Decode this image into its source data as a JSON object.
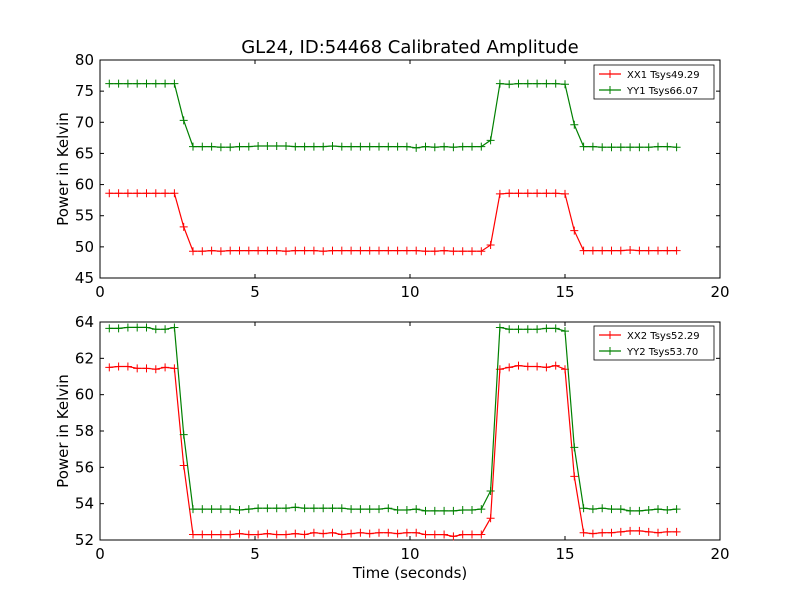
{
  "figure": {
    "title": "GL24, ID:54468 Calibrated Amplitude"
  },
  "chart_data": [
    {
      "type": "line",
      "title": "GL24, ID:54468 Calibrated Amplitude",
      "xlabel": "",
      "ylabel": "Power in Kelvin",
      "xlim": [
        0,
        20
      ],
      "ylim": [
        45,
        80
      ],
      "xticks": [
        0,
        5,
        10,
        15,
        20
      ],
      "yticks": [
        45,
        50,
        55,
        60,
        65,
        70,
        75,
        80
      ],
      "legend_position": "top-right",
      "grid": false,
      "x": [
        0.3,
        0.6,
        0.9,
        1.2,
        1.5,
        1.8,
        2.1,
        2.4,
        2.7,
        3.0,
        3.3,
        3.6,
        3.9,
        4.2,
        4.5,
        4.8,
        5.1,
        5.4,
        5.7,
        6.0,
        6.3,
        6.6,
        6.9,
        7.2,
        7.5,
        7.8,
        8.1,
        8.4,
        8.7,
        9.0,
        9.3,
        9.6,
        9.9,
        10.2,
        10.5,
        10.8,
        11.1,
        11.4,
        11.7,
        12.0,
        12.3,
        12.6,
        12.9,
        13.2,
        13.5,
        13.8,
        14.1,
        14.4,
        14.7,
        15.0,
        15.3,
        15.6,
        15.9,
        16.2,
        16.5,
        16.8,
        17.1,
        17.4,
        17.7,
        18.0,
        18.3,
        18.6
      ],
      "series": [
        {
          "name": "XX1 Tsys49.29",
          "color": "#ff0000",
          "values": [
            58.6,
            58.6,
            58.6,
            58.6,
            58.6,
            58.6,
            58.6,
            58.6,
            53.2,
            49.3,
            49.3,
            49.4,
            49.3,
            49.4,
            49.4,
            49.4,
            49.4,
            49.4,
            49.4,
            49.3,
            49.4,
            49.4,
            49.4,
            49.3,
            49.4,
            49.4,
            49.4,
            49.4,
            49.4,
            49.4,
            49.4,
            49.4,
            49.4,
            49.4,
            49.3,
            49.3,
            49.4,
            49.3,
            49.3,
            49.3,
            49.3,
            50.3,
            58.5,
            58.6,
            58.6,
            58.6,
            58.6,
            58.6,
            58.6,
            58.5,
            52.6,
            49.4,
            49.4,
            49.4,
            49.4,
            49.4,
            49.5,
            49.4,
            49.4,
            49.4,
            49.4,
            49.4
          ]
        },
        {
          "name": "YY1 Tsys66.07",
          "color": "#008000",
          "values": [
            76.2,
            76.2,
            76.2,
            76.2,
            76.2,
            76.2,
            76.2,
            76.2,
            70.3,
            66.1,
            66.1,
            66.1,
            66.0,
            66.0,
            66.1,
            66.1,
            66.2,
            66.2,
            66.2,
            66.2,
            66.1,
            66.1,
            66.1,
            66.1,
            66.2,
            66.1,
            66.1,
            66.1,
            66.1,
            66.1,
            66.1,
            66.1,
            66.1,
            65.9,
            66.1,
            66.0,
            66.1,
            66.0,
            66.1,
            66.1,
            66.1,
            67.1,
            76.2,
            76.1,
            76.2,
            76.2,
            76.2,
            76.2,
            76.2,
            76.1,
            69.6,
            66.1,
            66.1,
            66.0,
            66.0,
            66.0,
            66.0,
            66.0,
            66.0,
            66.1,
            66.1,
            66.0
          ]
        }
      ]
    },
    {
      "type": "line",
      "title": "",
      "xlabel": "Time (seconds)",
      "ylabel": "Power in Kelvin",
      "xlim": [
        0,
        20
      ],
      "ylim": [
        52,
        64
      ],
      "xticks": [
        0,
        5,
        10,
        15,
        20
      ],
      "yticks": [
        52,
        54,
        56,
        58,
        60,
        62,
        64
      ],
      "legend_position": "top-right",
      "grid": false,
      "x": [
        0.3,
        0.6,
        0.9,
        1.2,
        1.5,
        1.8,
        2.1,
        2.4,
        2.7,
        3.0,
        3.3,
        3.6,
        3.9,
        4.2,
        4.5,
        4.8,
        5.1,
        5.4,
        5.7,
        6.0,
        6.3,
        6.6,
        6.9,
        7.2,
        7.5,
        7.8,
        8.1,
        8.4,
        8.7,
        9.0,
        9.3,
        9.6,
        9.9,
        10.2,
        10.5,
        10.8,
        11.1,
        11.4,
        11.7,
        12.0,
        12.3,
        12.6,
        12.9,
        13.2,
        13.5,
        13.8,
        14.1,
        14.4,
        14.7,
        15.0,
        15.3,
        15.6,
        15.9,
        16.2,
        16.5,
        16.8,
        17.1,
        17.4,
        17.7,
        18.0,
        18.3,
        18.6
      ],
      "series": [
        {
          "name": "XX2 Tsys52.29",
          "color": "#ff0000",
          "values": [
            61.5,
            61.55,
            61.55,
            61.45,
            61.45,
            61.4,
            61.5,
            61.45,
            56.1,
            52.3,
            52.3,
            52.3,
            52.3,
            52.3,
            52.35,
            52.3,
            52.3,
            52.35,
            52.3,
            52.3,
            52.35,
            52.3,
            52.4,
            52.35,
            52.4,
            52.3,
            52.35,
            52.4,
            52.35,
            52.4,
            52.4,
            52.35,
            52.4,
            52.4,
            52.3,
            52.3,
            52.3,
            52.2,
            52.3,
            52.3,
            52.3,
            53.2,
            61.4,
            61.5,
            61.6,
            61.55,
            61.55,
            61.5,
            61.6,
            61.4,
            55.5,
            52.4,
            52.35,
            52.4,
            52.4,
            52.45,
            52.5,
            52.5,
            52.45,
            52.4,
            52.45,
            52.45
          ]
        },
        {
          "name": "YY2 Tsys53.70",
          "color": "#008000",
          "values": [
            63.65,
            63.65,
            63.7,
            63.7,
            63.7,
            63.6,
            63.6,
            63.7,
            57.8,
            53.7,
            53.7,
            53.7,
            53.7,
            53.7,
            53.65,
            53.7,
            53.75,
            53.75,
            53.75,
            53.75,
            53.8,
            53.75,
            53.75,
            53.75,
            53.75,
            53.75,
            53.7,
            53.7,
            53.7,
            53.7,
            53.75,
            53.65,
            53.65,
            53.7,
            53.6,
            53.6,
            53.6,
            53.6,
            53.65,
            53.65,
            53.7,
            54.7,
            63.7,
            63.6,
            63.6,
            63.6,
            63.6,
            63.65,
            63.65,
            63.5,
            57.1,
            53.75,
            53.7,
            53.75,
            53.7,
            53.7,
            53.6,
            53.6,
            53.65,
            53.7,
            53.65,
            53.7
          ]
        }
      ]
    }
  ]
}
